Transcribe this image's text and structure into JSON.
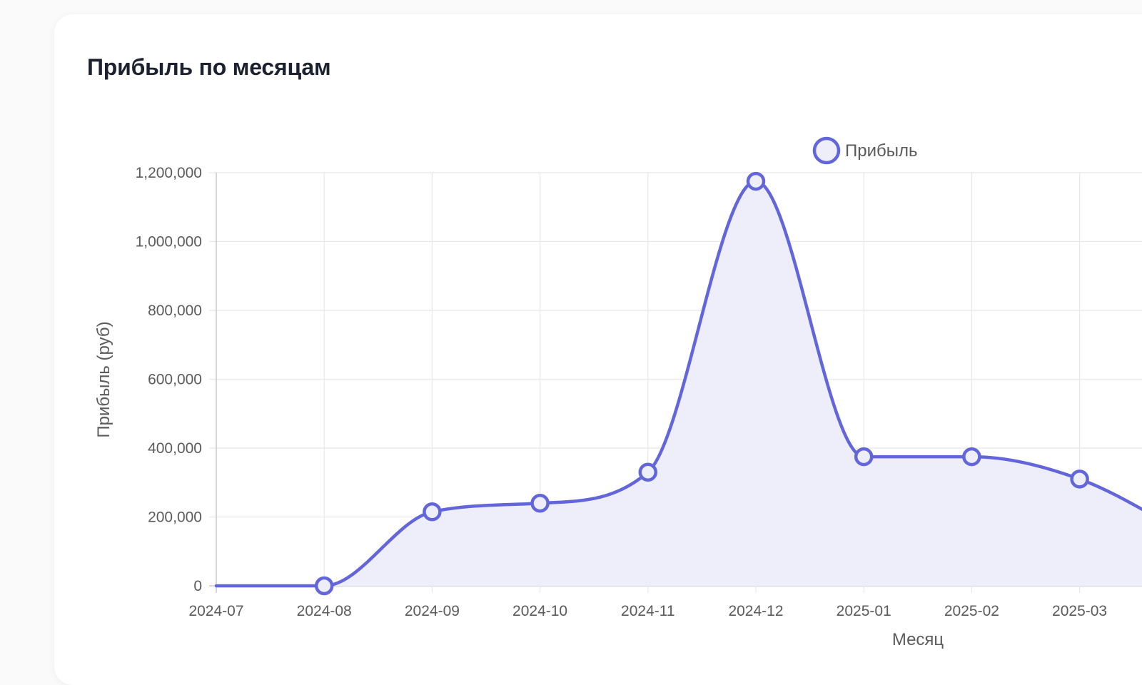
{
  "card": {
    "title": "Прибыль по месяцам"
  },
  "chart_data": {
    "type": "area",
    "x": [
      "2024-07",
      "2024-08",
      "2024-09",
      "2024-10",
      "2024-11",
      "2024-12",
      "2025-01",
      "2025-02",
      "2025-03"
    ],
    "series": [
      {
        "name": "Прибыль",
        "values": [
          0,
          0,
          215000,
          240000,
          330000,
          1175000,
          375000,
          375000,
          310000
        ]
      }
    ],
    "next_value_offscreen": 150000,
    "ylabel": "Прибыль (руб)",
    "xlabel": "Месяц",
    "ylim": [
      0,
      1200000
    ],
    "yticks": [
      0,
      200000,
      400000,
      600000,
      800000,
      1000000,
      1200000
    ],
    "ytick_labels": [
      "0",
      "200,000",
      "400,000",
      "600,000",
      "800,000",
      "1,000,000",
      "1,200,000"
    ],
    "grid": true,
    "legend": "top-center",
    "smooth": true
  },
  "colors": {
    "line": "#6366db",
    "fill": "#eeeefb",
    "grid": "#e8e8ec",
    "axis": "#c9c9cf"
  }
}
